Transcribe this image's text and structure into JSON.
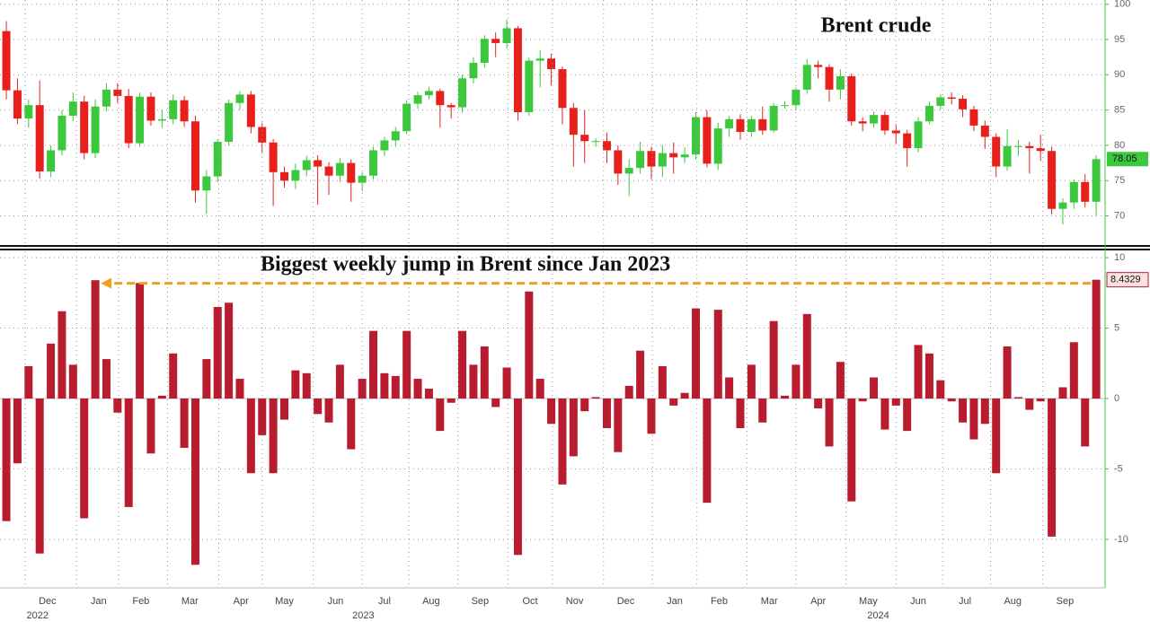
{
  "chart_data": [
    {
      "type": "candlestick",
      "title": "Brent crude",
      "up_color": "#3cc83c",
      "down_color": "#e8201c",
      "xlim": [
        -0.57,
        98.8
      ],
      "ylim": [
        66,
        100.6
      ],
      "yticks": [
        70,
        75,
        80,
        85,
        90,
        95,
        100
      ],
      "grid": true,
      "open": [
        96.2,
        87.8,
        83.8,
        85.7,
        76.3,
        79.3,
        84.2,
        86.2,
        78.9,
        85.5,
        87.9,
        87.0,
        80.3,
        86.9,
        83.5,
        83.7,
        86.4,
        83.4,
        73.6,
        75.6,
        80.5,
        86.0,
        87.2,
        82.6,
        80.4,
        76.2,
        75.0,
        76.5,
        77.9,
        77.0,
        75.7,
        77.5,
        74.7,
        75.7,
        79.3,
        80.7,
        82.0,
        85.9,
        87.1,
        87.7,
        85.7,
        85.4,
        89.5,
        91.7,
        95.1,
        94.5,
        96.6,
        84.7,
        92.0,
        92.3,
        90.8,
        85.3,
        81.5,
        80.6,
        80.6,
        79.3,
        76.0,
        76.8,
        79.2,
        77.0,
        78.9,
        78.3,
        78.7,
        84.0,
        77.4,
        82.4,
        83.7,
        81.9,
        83.7,
        82.1,
        85.6,
        85.7,
        87.9,
        91.4,
        91.1,
        87.9,
        89.8,
        83.4,
        83.1,
        84.3,
        82.1,
        81.7,
        79.6,
        83.4,
        85.6,
        86.8,
        86.6,
        85.1,
        82.8,
        81.2,
        77.0,
        79.9,
        79.9,
        79.6,
        79.2,
        71.0,
        71.9,
        74.8,
        72.0
      ],
      "high": [
        97.6,
        89.5,
        86.5,
        89.2,
        80.0,
        85.0,
        87.5,
        87.0,
        86.5,
        88.8,
        88.8,
        88.0,
        87.5,
        87.5,
        85.0,
        87.2,
        87.0,
        84.2,
        76.5,
        80.9,
        86.5,
        87.7,
        87.7,
        83.2,
        80.9,
        77.0,
        77.4,
        78.5,
        78.6,
        77.6,
        78.2,
        78.0,
        76.2,
        79.8,
        81.2,
        82.6,
        86.4,
        87.6,
        88.3,
        88.0,
        86.0,
        90.0,
        92.5,
        95.6,
        96.0,
        97.8,
        96.9,
        92.5,
        93.5,
        93.0,
        91.2,
        86.0,
        85.0,
        81.0,
        81.8,
        80.0,
        78.0,
        80.5,
        79.8,
        80.0,
        80.4,
        79.7,
        84.7,
        85.0,
        83.2,
        84.2,
        84.4,
        84.2,
        85.5,
        86.0,
        86.2,
        88.2,
        92.2,
        92.0,
        91.5,
        90.8,
        90.2,
        84.0,
        84.8,
        84.8,
        83.0,
        82.2,
        84.0,
        86.2,
        87.2,
        87.5,
        87.1,
        85.6,
        83.5,
        81.7,
        82.3,
        80.8,
        80.5,
        81.5,
        79.8,
        72.5,
        75.2,
        75.9,
        78.6
      ],
      "low": [
        86.5,
        83.0,
        82.5,
        75.3,
        75.5,
        78.6,
        83.4,
        78.0,
        78.2,
        84.8,
        86.0,
        79.6,
        79.8,
        82.8,
        82.5,
        83.0,
        82.6,
        71.9,
        70.3,
        74.8,
        80.0,
        85.0,
        81.7,
        79.0,
        71.4,
        74.0,
        73.8,
        75.6,
        71.6,
        73.0,
        74.8,
        72.0,
        73.5,
        75.2,
        78.5,
        79.8,
        81.6,
        85.2,
        86.5,
        82.5,
        83.8,
        84.6,
        88.8,
        91.0,
        92.5,
        93.7,
        83.5,
        84.2,
        88.2,
        88.5,
        83.0,
        77.0,
        77.5,
        79.8,
        77.5,
        74.4,
        72.8,
        76.0,
        75.2,
        75.5,
        76.0,
        77.5,
        78.0,
        76.9,
        76.5,
        81.2,
        80.8,
        81.2,
        81.5,
        81.8,
        85.2,
        85.0,
        87.3,
        89.5,
        86.2,
        86.5,
        82.8,
        82.0,
        82.5,
        81.5,
        80.2,
        77.0,
        79.0,
        83.0,
        85.0,
        85.8,
        84.0,
        82.0,
        79.5,
        75.5,
        76.4,
        78.5,
        76.0,
        77.8,
        70.2,
        68.8,
        71.0,
        71.2,
        70.0
      ],
      "close": [
        87.8,
        83.8,
        85.7,
        76.3,
        79.3,
        84.2,
        86.2,
        78.9,
        85.5,
        87.9,
        87.0,
        80.3,
        86.9,
        83.5,
        83.7,
        86.4,
        83.4,
        73.6,
        75.6,
        80.5,
        86.0,
        87.2,
        82.6,
        80.4,
        76.2,
        75.0,
        76.5,
        77.9,
        77.0,
        75.7,
        77.5,
        74.7,
        75.7,
        79.3,
        80.7,
        82.0,
        85.9,
        87.1,
        87.7,
        85.7,
        85.4,
        89.5,
        91.7,
        95.1,
        94.5,
        96.6,
        84.7,
        92.0,
        92.3,
        90.8,
        85.3,
        81.5,
        80.6,
        80.6,
        79.3,
        76.0,
        76.8,
        79.2,
        77.0,
        78.9,
        78.3,
        78.7,
        84.0,
        77.4,
        82.4,
        83.7,
        81.9,
        83.7,
        82.1,
        85.6,
        85.7,
        87.9,
        91.4,
        91.1,
        87.9,
        89.8,
        83.4,
        83.1,
        84.3,
        82.1,
        81.7,
        79.6,
        83.4,
        85.6,
        86.8,
        86.6,
        85.1,
        82.8,
        81.2,
        77.0,
        79.9,
        79.9,
        79.6,
        79.2,
        71.0,
        71.9,
        74.8,
        72.0,
        78.05
      ]
    },
    {
      "type": "bar",
      "annotation": "Biggest weekly jump in Brent since Jan 2023",
      "color": "#b81c2e",
      "annotation_color": "#f0a020",
      "xlim": [
        -0.57,
        98.8
      ],
      "ylim": [
        -13.44,
        10.45
      ],
      "yticks": [
        10,
        5,
        0,
        -5,
        -10
      ],
      "grid": true,
      "values": [
        -8.7,
        -4.6,
        2.3,
        -11.0,
        3.9,
        6.2,
        2.4,
        -8.5,
        8.4,
        2.8,
        -1.0,
        -7.7,
        8.2,
        -3.9,
        0.2,
        3.2,
        -3.5,
        -11.8,
        2.8,
        6.5,
        6.8,
        1.4,
        -5.3,
        -2.6,
        -5.3,
        -1.5,
        2.0,
        1.8,
        -1.1,
        -1.7,
        2.4,
        -3.6,
        1.4,
        4.8,
        1.8,
        1.6,
        4.8,
        1.4,
        0.7,
        -2.3,
        -0.3,
        4.8,
        2.4,
        3.7,
        -0.6,
        2.2,
        -11.1,
        7.6,
        1.4,
        -1.8,
        -6.1,
        -4.1,
        -0.9,
        0.1,
        -2.1,
        -3.8,
        0.9,
        3.4,
        -2.5,
        2.3,
        -0.5,
        0.4,
        6.4,
        -7.4,
        6.3,
        1.5,
        -2.1,
        2.4,
        -1.7,
        5.5,
        0.2,
        2.4,
        6.0,
        -0.7,
        -3.4,
        2.6,
        -7.3,
        -0.2,
        1.5,
        -2.2,
        -0.5,
        -2.3,
        3.8,
        3.2,
        1.3,
        -0.2,
        -1.7,
        -2.9,
        -1.8,
        -5.3,
        3.7,
        0.1,
        -0.8,
        -0.2,
        -9.8,
        0.8,
        4.0,
        -3.4,
        8.4329
      ],
      "xticks": [
        {
          "value": 3.7,
          "label": "Dec"
        },
        {
          "value": 8.3,
          "label": "Jan"
        },
        {
          "value": 12.1,
          "label": "Feb"
        },
        {
          "value": 16.5,
          "label": "Mar"
        },
        {
          "value": 21.1,
          "label": "Apr"
        },
        {
          "value": 25.0,
          "label": "May"
        },
        {
          "value": 29.6,
          "label": "Jun"
        },
        {
          "value": 34.0,
          "label": "Jul"
        },
        {
          "value": 38.2,
          "label": "Aug"
        },
        {
          "value": 42.6,
          "label": "Sep"
        },
        {
          "value": 47.1,
          "label": "Oct"
        },
        {
          "value": 51.1,
          "label": "Nov"
        },
        {
          "value": 55.7,
          "label": "Dec"
        },
        {
          "value": 60.1,
          "label": "Jan"
        },
        {
          "value": 64.1,
          "label": "Feb"
        },
        {
          "value": 68.6,
          "label": "Mar"
        },
        {
          "value": 73.0,
          "label": "Apr"
        },
        {
          "value": 77.5,
          "label": "May"
        },
        {
          "value": 82.0,
          "label": "Jun"
        },
        {
          "value": 86.2,
          "label": "Jul"
        },
        {
          "value": 90.5,
          "label": "Aug"
        },
        {
          "value": 95.2,
          "label": "Sep"
        }
      ],
      "year_ticks": [
        {
          "value": 2.8,
          "label": "2022"
        },
        {
          "value": 32.1,
          "label": "2023"
        },
        {
          "value": 78.4,
          "label": "2024"
        }
      ]
    }
  ]
}
